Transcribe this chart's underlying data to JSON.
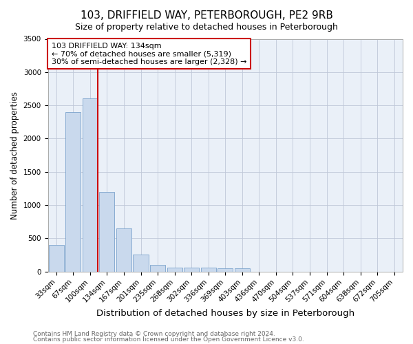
{
  "title": "103, DRIFFIELD WAY, PETERBOROUGH, PE2 9RB",
  "subtitle": "Size of property relative to detached houses in Peterborough",
  "xlabel": "Distribution of detached houses by size in Peterborough",
  "ylabel": "Number of detached properties",
  "footnote1": "Contains HM Land Registry data © Crown copyright and database right 2024.",
  "footnote2": "Contains public sector information licensed under the Open Government Licence v3.0.",
  "bar_labels": [
    "33sqm",
    "67sqm",
    "100sqm",
    "134sqm",
    "167sqm",
    "201sqm",
    "235sqm",
    "268sqm",
    "302sqm",
    "336sqm",
    "369sqm",
    "403sqm",
    "436sqm",
    "470sqm",
    "504sqm",
    "537sqm",
    "571sqm",
    "604sqm",
    "638sqm",
    "672sqm",
    "705sqm"
  ],
  "bar_values": [
    400,
    2400,
    2600,
    1200,
    650,
    250,
    100,
    60,
    60,
    60,
    50,
    50,
    0,
    0,
    0,
    0,
    0,
    0,
    0,
    0,
    0
  ],
  "bar_color": "#c9d9ed",
  "bar_edge_color": "#7ba3cc",
  "red_line_index": 2,
  "red_line_color": "#cc0000",
  "annotation_line1": "103 DRIFFIELD WAY: 134sqm",
  "annotation_line2": "← 70% of detached houses are smaller (5,319)",
  "annotation_line3": "30% of semi-detached houses are larger (2,328) →",
  "annotation_box_color": "#cc0000",
  "annotation_text_color": "#000000",
  "ylim": [
    0,
    3500
  ],
  "yticks": [
    0,
    500,
    1000,
    1500,
    2000,
    2500,
    3000,
    3500
  ],
  "background_color": "#ffffff",
  "plot_bg_color": "#eaf0f8",
  "grid_color": "#c0c8d8",
  "title_fontsize": 11,
  "subtitle_fontsize": 9,
  "xlabel_fontsize": 9.5,
  "ylabel_fontsize": 8.5,
  "tick_fontsize": 7.5,
  "annotation_fontsize": 8,
  "footnote_fontsize": 6.5
}
